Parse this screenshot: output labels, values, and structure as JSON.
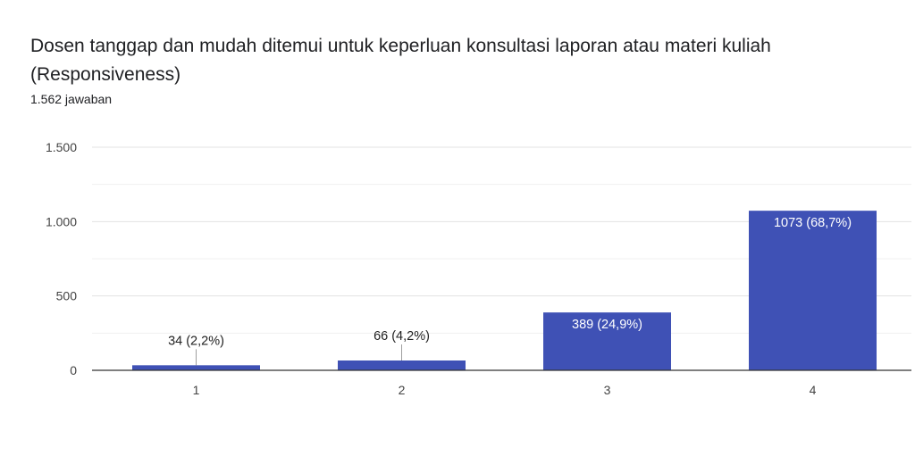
{
  "question": {
    "title": "Dosen tanggap dan mudah ditemui untuk keperluan konsultasi laporan atau materi kuliah (Responsiveness)",
    "responses": "1.562 jawaban"
  },
  "chart_data": {
    "type": "bar",
    "categories": [
      "1",
      "2",
      "3",
      "4"
    ],
    "values": [
      34,
      66,
      389,
      1073
    ],
    "data_labels": [
      "34 (2,2%)",
      "66 (4,2%)",
      "389 (24,9%)",
      "1073 (68,7%)"
    ],
    "y_ticks": [
      0,
      500,
      1000,
      1500
    ],
    "y_tick_labels": [
      "0",
      "500",
      "1.000",
      "1.500"
    ],
    "ylim": [
      0,
      1500
    ],
    "grid": true,
    "bar_color": "#3f51b5"
  }
}
